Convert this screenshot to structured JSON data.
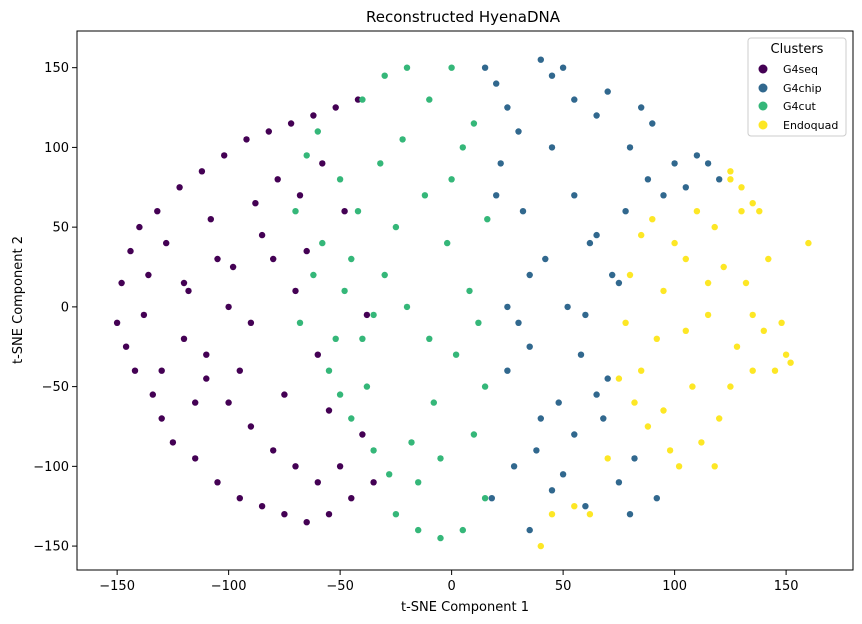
{
  "chart_data": {
    "type": "scatter",
    "title": "Reconstructed HyenaDNA",
    "xlabel": "t-SNE Component 1",
    "ylabel": "t-SNE Component 2",
    "xlim": [
      -168,
      180
    ],
    "ylim": [
      -165,
      173
    ],
    "xticks": [
      -150,
      -100,
      -50,
      0,
      50,
      100,
      150
    ],
    "yticks": [
      -150,
      -100,
      -50,
      0,
      50,
      100,
      150
    ],
    "xtick_labels": [
      "−150",
      "−100",
      "−50",
      "0",
      "50",
      "100",
      "150"
    ],
    "ytick_labels": [
      "−150",
      "−100",
      "−50",
      "0",
      "50",
      "100",
      "150"
    ],
    "grid": false,
    "legend": {
      "title": "Clusters",
      "placement": "top-right"
    },
    "series": [
      {
        "name": "G4seq",
        "color": "#440154",
        "points": [
          [
            -150,
            -10
          ],
          [
            -148,
            15
          ],
          [
            -146,
            -25
          ],
          [
            -144,
            35
          ],
          [
            -142,
            -40
          ],
          [
            -140,
            50
          ],
          [
            -138,
            -5
          ],
          [
            -136,
            20
          ],
          [
            -134,
            -55
          ],
          [
            -132,
            60
          ],
          [
            -130,
            -70
          ],
          [
            -128,
            40
          ],
          [
            -125,
            -85
          ],
          [
            -122,
            75
          ],
          [
            -120,
            -20
          ],
          [
            -118,
            10
          ],
          [
            -115,
            -95
          ],
          [
            -112,
            85
          ],
          [
            -110,
            -45
          ],
          [
            -108,
            55
          ],
          [
            -105,
            -110
          ],
          [
            -102,
            95
          ],
          [
            -100,
            -60
          ],
          [
            -98,
            25
          ],
          [
            -95,
            -120
          ],
          [
            -92,
            105
          ],
          [
            -90,
            -75
          ],
          [
            -88,
            65
          ],
          [
            -85,
            -125
          ],
          [
            -82,
            110
          ],
          [
            -80,
            -90
          ],
          [
            -78,
            80
          ],
          [
            -75,
            -130
          ],
          [
            -72,
            115
          ],
          [
            -70,
            -100
          ],
          [
            -68,
            70
          ],
          [
            -65,
            -135
          ],
          [
            -62,
            120
          ],
          [
            -60,
            -110
          ],
          [
            -58,
            90
          ],
          [
            -55,
            -130
          ],
          [
            -52,
            125
          ],
          [
            -50,
            -100
          ],
          [
            -48,
            60
          ],
          [
            -45,
            -120
          ],
          [
            -42,
            130
          ],
          [
            -40,
            -80
          ],
          [
            -38,
            -5
          ],
          [
            -35,
            -110
          ],
          [
            -60,
            -30
          ],
          [
            -70,
            10
          ],
          [
            -80,
            30
          ],
          [
            -90,
            -10
          ],
          [
            -100,
            0
          ],
          [
            -110,
            -30
          ],
          [
            -120,
            15
          ],
          [
            -130,
            -40
          ],
          [
            -75,
            -55
          ],
          [
            -85,
            45
          ],
          [
            -95,
            -40
          ],
          [
            -105,
            30
          ],
          [
            -115,
            -60
          ],
          [
            -65,
            35
          ],
          [
            -55,
            -65
          ]
        ]
      },
      {
        "name": "G4chip",
        "color": "#31688e",
        "points": [
          [
            15,
            150
          ],
          [
            20,
            140
          ],
          [
            25,
            125
          ],
          [
            30,
            110
          ],
          [
            35,
            -140
          ],
          [
            40,
            155
          ],
          [
            45,
            145
          ],
          [
            50,
            150
          ],
          [
            55,
            130
          ],
          [
            60,
            -125
          ],
          [
            65,
            120
          ],
          [
            70,
            135
          ],
          [
            75,
            -110
          ],
          [
            80,
            100
          ],
          [
            85,
            125
          ],
          [
            90,
            115
          ],
          [
            95,
            70
          ],
          [
            100,
            90
          ],
          [
            105,
            75
          ],
          [
            110,
            95
          ],
          [
            115,
            90
          ],
          [
            120,
            80
          ],
          [
            18,
            -120
          ],
          [
            22,
            90
          ],
          [
            28,
            -100
          ],
          [
            32,
            60
          ],
          [
            38,
            -90
          ],
          [
            42,
            30
          ],
          [
            48,
            -60
          ],
          [
            52,
            0
          ],
          [
            58,
            -30
          ],
          [
            62,
            40
          ],
          [
            68,
            -70
          ],
          [
            72,
            20
          ],
          [
            78,
            60
          ],
          [
            82,
            -95
          ],
          [
            88,
            80
          ],
          [
            92,
            -120
          ],
          [
            25,
            -40
          ],
          [
            30,
            -10
          ],
          [
            35,
            20
          ],
          [
            40,
            -70
          ],
          [
            45,
            100
          ],
          [
            50,
            -105
          ],
          [
            55,
            70
          ],
          [
            60,
            -5
          ],
          [
            65,
            45
          ],
          [
            70,
            -45
          ],
          [
            75,
            15
          ],
          [
            80,
            -130
          ],
          [
            20,
            70
          ],
          [
            25,
            0
          ],
          [
            35,
            -25
          ],
          [
            45,
            -115
          ],
          [
            55,
            -80
          ],
          [
            65,
            -55
          ]
        ]
      },
      {
        "name": "G4cut",
        "color": "#35b779",
        "points": [
          [
            -70,
            60
          ],
          [
            -65,
            95
          ],
          [
            -60,
            110
          ],
          [
            -55,
            -40
          ],
          [
            -50,
            80
          ],
          [
            -45,
            -70
          ],
          [
            -40,
            130
          ],
          [
            -35,
            -90
          ],
          [
            -30,
            145
          ],
          [
            -25,
            -130
          ],
          [
            -20,
            150
          ],
          [
            -15,
            -140
          ],
          [
            -10,
            130
          ],
          [
            -5,
            -145
          ],
          [
            0,
            150
          ],
          [
            5,
            -140
          ],
          [
            10,
            115
          ],
          [
            15,
            -120
          ],
          [
            -68,
            -10
          ],
          [
            -62,
            20
          ],
          [
            -58,
            40
          ],
          [
            -52,
            -20
          ],
          [
            -48,
            10
          ],
          [
            -42,
            60
          ],
          [
            -38,
            -50
          ],
          [
            -32,
            90
          ],
          [
            -28,
            -105
          ],
          [
            -22,
            105
          ],
          [
            -18,
            -85
          ],
          [
            -12,
            70
          ],
          [
            -8,
            -60
          ],
          [
            -2,
            40
          ],
          [
            2,
            -30
          ],
          [
            8,
            10
          ],
          [
            12,
            -10
          ],
          [
            16,
            55
          ],
          [
            -20,
            0
          ],
          [
            -30,
            20
          ],
          [
            -10,
            -20
          ],
          [
            0,
            80
          ],
          [
            10,
            -80
          ],
          [
            -40,
            -20
          ],
          [
            -25,
            50
          ],
          [
            -15,
            -110
          ],
          [
            5,
            100
          ],
          [
            -50,
            -55
          ],
          [
            -35,
            -5
          ],
          [
            -5,
            -95
          ],
          [
            15,
            -50
          ],
          [
            -45,
            30
          ]
        ]
      },
      {
        "name": "Endoquad",
        "color": "#fde725",
        "points": [
          [
            75,
            -45
          ],
          [
            78,
            -10
          ],
          [
            80,
            20
          ],
          [
            82,
            -60
          ],
          [
            85,
            45
          ],
          [
            88,
            -75
          ],
          [
            90,
            55
          ],
          [
            92,
            -20
          ],
          [
            95,
            10
          ],
          [
            98,
            -90
          ],
          [
            100,
            40
          ],
          [
            102,
            -100
          ],
          [
            105,
            30
          ],
          [
            108,
            -50
          ],
          [
            110,
            60
          ],
          [
            112,
            -85
          ],
          [
            115,
            -5
          ],
          [
            118,
            50
          ],
          [
            120,
            -70
          ],
          [
            122,
            25
          ],
          [
            125,
            85
          ],
          [
            128,
            -25
          ],
          [
            130,
            75
          ],
          [
            132,
            15
          ],
          [
            135,
            -40
          ],
          [
            138,
            60
          ],
          [
            140,
            -15
          ],
          [
            142,
            30
          ],
          [
            145,
            -40
          ],
          [
            148,
            -10
          ],
          [
            150,
            -30
          ],
          [
            152,
            -35
          ],
          [
            125,
            80
          ],
          [
            130,
            60
          ],
          [
            135,
            65
          ],
          [
            118,
            -100
          ],
          [
            160,
            40
          ],
          [
            40,
            -150
          ],
          [
            45,
            -130
          ],
          [
            55,
            -125
          ],
          [
            62,
            -130
          ],
          [
            70,
            -95
          ],
          [
            85,
            -40
          ],
          [
            95,
            -65
          ],
          [
            105,
            -15
          ],
          [
            115,
            15
          ],
          [
            125,
            -50
          ],
          [
            135,
            -5
          ]
        ]
      }
    ]
  }
}
